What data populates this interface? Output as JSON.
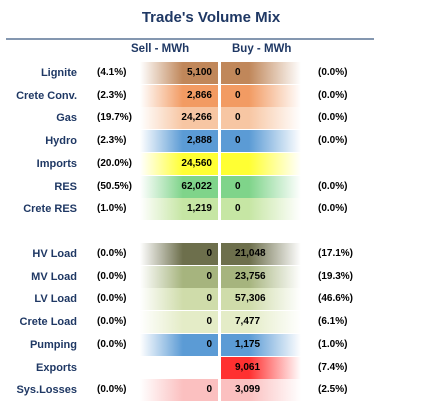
{
  "chart_data": {
    "type": "table",
    "title": "Trade's Volume Mix",
    "columns": [
      "Sell - MWh",
      "Buy - MWh"
    ],
    "groups": [
      {
        "rows": [
          {
            "label": "Lignite",
            "sell_pct": "(4.1%)",
            "sell": "5,100",
            "buy": "0",
            "buy_pct": "(0.0%)",
            "sell_value": 5100,
            "buy_value": 0,
            "color": "#c0875a"
          },
          {
            "label": "Crete Conv.",
            "sell_pct": "(2.3%)",
            "sell": "2,866",
            "buy": "0",
            "buy_pct": "(0.0%)",
            "sell_value": 2866,
            "buy_value": 0,
            "color": "#f29b63"
          },
          {
            "label": "Gas",
            "sell_pct": "(19.7%)",
            "sell": "24,266",
            "buy": "0",
            "buy_pct": "(0.0%)",
            "sell_value": 24266,
            "buy_value": 0,
            "color": "#f7c6a3"
          },
          {
            "label": "Hydro",
            "sell_pct": "(2.3%)",
            "sell": "2,888",
            "buy": "0",
            "buy_pct": "(0.0%)",
            "sell_value": 2888,
            "buy_value": 0,
            "color": "#5b9bd5"
          },
          {
            "label": "Imports",
            "sell_pct": "(20.0%)",
            "sell": "24,560",
            "buy": "",
            "buy_pct": "",
            "sell_value": 24560,
            "buy_value": null,
            "color": "#ffff33"
          },
          {
            "label": "RES",
            "sell_pct": "(50.5%)",
            "sell": "62,022",
            "buy": "0",
            "buy_pct": "(0.0%)",
            "sell_value": 62022,
            "buy_value": 0,
            "color": "#7fd48a"
          },
          {
            "label": "Crete RES",
            "sell_pct": "(1.0%)",
            "sell": "1,219",
            "buy": "0",
            "buy_pct": "(0.0%)",
            "sell_value": 1219,
            "buy_value": 0,
            "color": "#c6e6a4"
          }
        ]
      },
      {
        "rows": [
          {
            "label": "HV Load",
            "sell_pct": "(0.0%)",
            "sell": "0",
            "buy": "21,048",
            "buy_pct": "(17.1%)",
            "sell_value": 0,
            "buy_value": 21048,
            "color": "#6d6f4c"
          },
          {
            "label": "MV Load",
            "sell_pct": "(0.0%)",
            "sell": "0",
            "buy": "23,756",
            "buy_pct": "(19.3%)",
            "sell_value": 0,
            "buy_value": 23756,
            "color": "#a6b47e"
          },
          {
            "label": "LV Load",
            "sell_pct": "(0.0%)",
            "sell": "0",
            "buy": "57,306",
            "buy_pct": "(46.6%)",
            "sell_value": 0,
            "buy_value": 57306,
            "color": "#cfdcaa"
          },
          {
            "label": "Crete Load",
            "sell_pct": "(0.0%)",
            "sell": "0",
            "buy": "7,477",
            "buy_pct": "(6.1%)",
            "sell_value": 0,
            "buy_value": 7477,
            "color": "#e4ecc7"
          },
          {
            "label": "Pumping",
            "sell_pct": "(0.0%)",
            "sell": "0",
            "buy": "1,175",
            "buy_pct": "(1.0%)",
            "sell_value": 0,
            "buy_value": 1175,
            "color": "#5b9bd5"
          },
          {
            "label": "Exports",
            "sell_pct": "",
            "sell": "",
            "buy": "9,061",
            "buy_pct": "(7.4%)",
            "sell_value": null,
            "buy_value": 9061,
            "color": "#ff3030"
          },
          {
            "label": "Sys.Losses",
            "sell_pct": "(0.0%)",
            "sell": "0",
            "buy": "3,099",
            "buy_pct": "(2.5%)",
            "sell_value": 0,
            "buy_value": 3099,
            "color": "#fbc0c0"
          }
        ]
      }
    ]
  }
}
